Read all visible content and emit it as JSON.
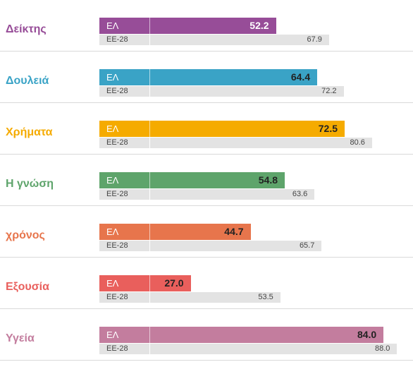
{
  "chart_data": {
    "type": "bar",
    "categories": [
      "Δείκτης",
      "Δουλειά",
      "Χρήματα",
      "Η γνώση",
      "χρόνος",
      "Εξουσία",
      "Υγεία"
    ],
    "series": [
      {
        "name": "ΕΛ",
        "values": [
          52.2,
          64.4,
          72.5,
          54.8,
          44.7,
          27.0,
          84.0
        ]
      },
      {
        "name": "ΕΕ-28",
        "values": [
          67.9,
          72.2,
          80.6,
          63.6,
          65.7,
          53.5,
          88.0
        ]
      }
    ],
    "xlim": [
      0,
      100
    ],
    "grid": false,
    "legend": "none"
  },
  "colors": {
    "categories": [
      "#974d98",
      "#3aa3c6",
      "#f5ab00",
      "#5ea46b",
      "#e7754c",
      "#e95f5c",
      "#c37d9e"
    ],
    "el_value_text": [
      "#ffffff",
      "#222222",
      "#222222",
      "#222222",
      "#222222",
      "#222222",
      "#222222"
    ],
    "eu_bar": "#e3e3e3"
  }
}
